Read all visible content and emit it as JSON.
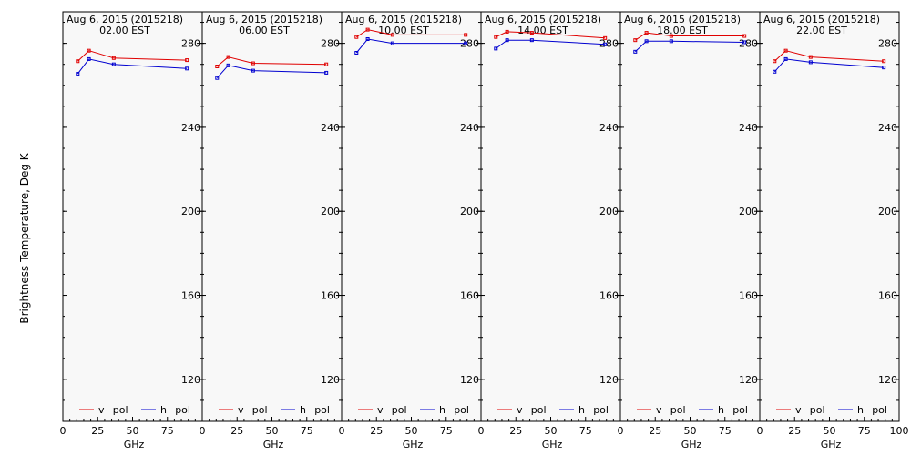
{
  "y_axis_label": "Brightness Temperature, Deg K",
  "legend": {
    "v_label": "v−pol",
    "h_label": "h−pol"
  },
  "colors": {
    "v": "#e00000",
    "h": "#0000d0",
    "background": "#f8f8f8"
  },
  "chart_data": {
    "type": "line",
    "ylabel": "Brightness Temperature, Deg K",
    "xlabel": "GHz",
    "ylim": [
      100,
      295
    ],
    "xlim": [
      0,
      100
    ],
    "grid": false,
    "legend_position": "bottom",
    "panels": [
      {
        "title": "Aug  6, 2015 (2015218)",
        "subtitle": "02.00 EST",
        "x_ticks": [
          "0",
          "25",
          "50",
          "75"
        ],
        "y_ticks": [
          "280",
          "240",
          "200",
          "160",
          "120"
        ],
        "series": [
          {
            "name": "v−pol",
            "x": [
              10.65,
              18.7,
              36.5,
              89
            ],
            "y": [
              271.5,
              276.5,
              273,
              272
            ]
          },
          {
            "name": "h−pol",
            "x": [
              10.65,
              18.7,
              36.5,
              89
            ],
            "y": [
              265.5,
              272.5,
              270,
              268
            ]
          }
        ]
      },
      {
        "title": "Aug  6, 2015 (2015218)",
        "subtitle": "06.00 EST",
        "x_ticks": [
          "0",
          "25",
          "50",
          "75"
        ],
        "y_ticks": [
          "280",
          "240",
          "200",
          "160",
          "120"
        ],
        "series": [
          {
            "name": "v−pol",
            "x": [
              10.65,
              18.7,
              36.5,
              89
            ],
            "y": [
              269,
              273.5,
              270.5,
              270
            ]
          },
          {
            "name": "h−pol",
            "x": [
              10.65,
              18.7,
              36.5,
              89
            ],
            "y": [
              263.5,
              269.5,
              267,
              266
            ]
          }
        ]
      },
      {
        "title": "Aug  6, 2015 (2015218)",
        "subtitle": "10.00 EST",
        "x_ticks": [
          "0",
          "25",
          "50",
          "75"
        ],
        "y_ticks": [
          "280",
          "240",
          "200",
          "160",
          "120"
        ],
        "series": [
          {
            "name": "v−pol",
            "x": [
              10.65,
              18.7,
              36.5,
              89
            ],
            "y": [
              283,
              286.5,
              284,
              284
            ]
          },
          {
            "name": "h−pol",
            "x": [
              10.65,
              18.7,
              36.5,
              89
            ],
            "y": [
              275.5,
              282,
              280,
              280
            ]
          }
        ]
      },
      {
        "title": "Aug  6, 2015 (2015218)",
        "subtitle": "14.00 EST",
        "x_ticks": [
          "0",
          "25",
          "50",
          "75"
        ],
        "y_ticks": [
          "280",
          "240",
          "200",
          "160",
          "120"
        ],
        "series": [
          {
            "name": "v−pol",
            "x": [
              10.65,
              18.7,
              36.5,
              89
            ],
            "y": [
              283,
              285.5,
              285,
              282.5
            ]
          },
          {
            "name": "h−pol",
            "x": [
              10.65,
              18.7,
              36.5,
              89
            ],
            "y": [
              277.5,
              281.5,
              281.5,
              279.5
            ]
          }
        ]
      },
      {
        "title": "Aug  6, 2015 (2015218)",
        "subtitle": "18.00 EST",
        "x_ticks": [
          "0",
          "25",
          "50",
          "75"
        ],
        "y_ticks": [
          "280",
          "240",
          "200",
          "160",
          "120"
        ],
        "series": [
          {
            "name": "v−pol",
            "x": [
              10.65,
              18.7,
              36.5,
              89
            ],
            "y": [
              281.5,
              285,
              283.5,
              283.5
            ]
          },
          {
            "name": "h−pol",
            "x": [
              10.65,
              18.7,
              36.5,
              89
            ],
            "y": [
              276,
              281,
              281,
              280.5
            ]
          }
        ]
      },
      {
        "title": "Aug  6, 2015 (2015218)",
        "subtitle": "22.00 EST",
        "x_ticks": [
          "0",
          "25",
          "50",
          "75",
          "100"
        ],
        "y_ticks": [
          "280",
          "240",
          "200",
          "160",
          "120"
        ],
        "series": [
          {
            "name": "v−pol",
            "x": [
              10.65,
              18.7,
              36.5,
              89
            ],
            "y": [
              271.5,
              276.5,
              273.5,
              271.5
            ]
          },
          {
            "name": "h−pol",
            "x": [
              10.65,
              18.7,
              36.5,
              89
            ],
            "y": [
              266.5,
              272.5,
              271,
              268.5
            ]
          }
        ]
      }
    ]
  }
}
